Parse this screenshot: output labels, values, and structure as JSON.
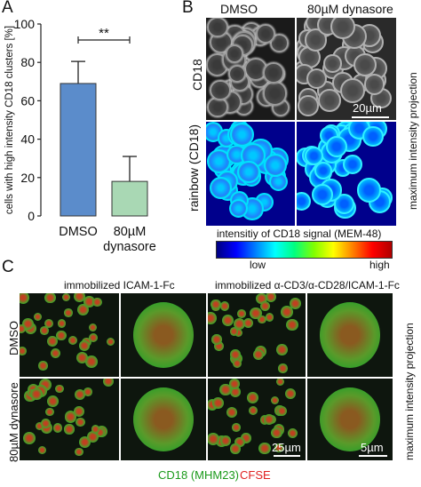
{
  "panels": {
    "A": {
      "letter": "A",
      "chart_data": {
        "type": "bar",
        "categories": [
          "DMSO",
          "80µM dynasore"
        ],
        "category_labels": [
          [
            "DMSO"
          ],
          [
            "80µM",
            "dynasore"
          ]
        ],
        "values": [
          69,
          18
        ],
        "errors": [
          11.5,
          13
        ],
        "bar_colors": [
          "#5b8ccb",
          "#a9d8b4"
        ],
        "ylabel": "cells with high intensity CD18 clusters [%]",
        "ylim": [
          0,
          100
        ],
        "yticks": [
          0,
          20,
          40,
          60,
          80,
          100
        ],
        "significance": "**"
      }
    },
    "B": {
      "letter": "B",
      "columns": [
        "DMSO",
        "80µM dynasore"
      ],
      "rows": [
        "CD18",
        "rainbow (CD18)"
      ],
      "side_label": "maximum intensity projection",
      "scalebar": "20µm",
      "colorbar": {
        "title": "intensitiy of CD18 signal (MEM-48)",
        "low": "low",
        "high": "high",
        "colors": [
          "#000080",
          "#0000ff",
          "#0080ff",
          "#00ffff",
          "#00ff80",
          "#80ff00",
          "#ffff00",
          "#ff8000",
          "#ff0000",
          "#b00000"
        ]
      }
    },
    "C": {
      "letter": "C",
      "columns": [
        "immobilized ICAM-1-Fc",
        "immobilized α-CD3/α-CD28/ICAM-1-Fc"
      ],
      "rows": [
        "DMSO",
        "80µM dynasore"
      ],
      "side_label": "maximum intensity projection",
      "scalebar_overview": "25µm",
      "scalebar_zoom": "5µm",
      "legend": [
        {
          "text": "CD18 (MHM23)",
          "color": "#1a9a1a"
        },
        {
          "text": "CFSE",
          "color": "#e02020"
        }
      ]
    }
  }
}
